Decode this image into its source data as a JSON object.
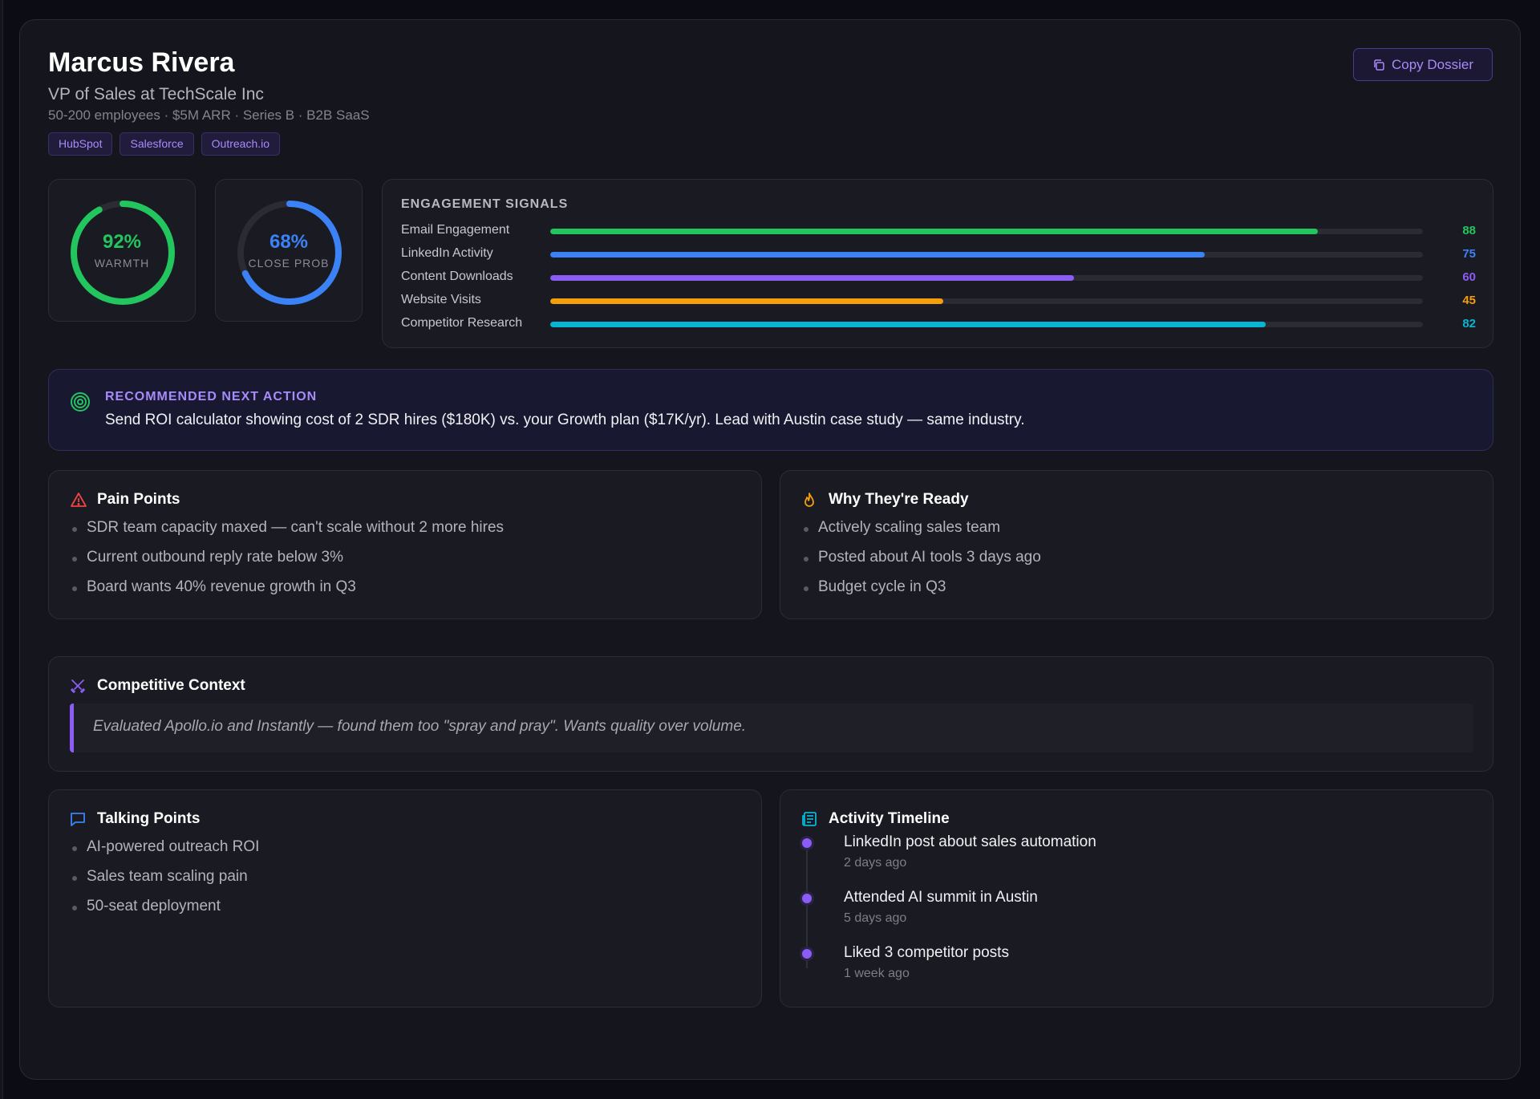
{
  "contact": {
    "name": "Marcus Rivera",
    "role": "VP of Sales at TechScale Inc",
    "meta": "50-200 employees · $5M ARR · Series B · B2B SaaS",
    "tags": [
      "HubSpot",
      "Salesforce",
      "Outreach.io"
    ]
  },
  "actions": {
    "copy_label": "Copy Dossier"
  },
  "scores": {
    "warmth": {
      "value": "92%",
      "fraction": 0.92,
      "label": "WARMTH",
      "color": "#22c55e"
    },
    "close_prob": {
      "value": "68%",
      "fraction": 0.68,
      "label": "CLOSE PROB",
      "color": "#3b82f6"
    }
  },
  "engagement": {
    "title": "ENGAGEMENT SIGNALS",
    "signals": [
      {
        "label": "Email Engagement",
        "value": 88,
        "color": "#22c55e"
      },
      {
        "label": "LinkedIn Activity",
        "value": 75,
        "color": "#3b82f6"
      },
      {
        "label": "Content Downloads",
        "value": 60,
        "color": "#8b5cf6"
      },
      {
        "label": "Website Visits",
        "value": 45,
        "color": "#f59e0b"
      },
      {
        "label": "Competitor Research",
        "value": 82,
        "color": "#06b6d4"
      }
    ]
  },
  "recommendation": {
    "label": "RECOMMENDED NEXT ACTION",
    "text": "Send ROI calculator showing cost of 2 SDR hires ($180K) vs. your Growth plan ($17K/yr). Lead with Austin case study — same industry."
  },
  "pain_points": {
    "title": "Pain Points",
    "items": [
      "SDR team capacity maxed — can't scale without 2 more hires",
      "Current outbound reply rate below 3%",
      "Board wants 40% revenue growth in Q3"
    ]
  },
  "why_ready": {
    "title": "Why They're Ready",
    "items": [
      "Actively scaling sales team",
      "Posted about AI tools 3 days ago",
      "Budget cycle in Q3"
    ]
  },
  "competitive": {
    "title": "Competitive Context",
    "quote": "Evaluated Apollo.io and Instantly — found them too \"spray and pray\". Wants quality over volume."
  },
  "talking_points": {
    "title": "Talking Points",
    "items": [
      "AI-powered outreach ROI",
      "Sales team scaling pain",
      "50-seat deployment"
    ]
  },
  "timeline": {
    "title": "Activity Timeline",
    "items": [
      {
        "title": "LinkedIn post about sales automation",
        "time": "2 days ago"
      },
      {
        "title": "Attended AI summit in Austin",
        "time": "5 days ago"
      },
      {
        "title": "Liked 3 competitor posts",
        "time": "1 week ago"
      }
    ]
  }
}
